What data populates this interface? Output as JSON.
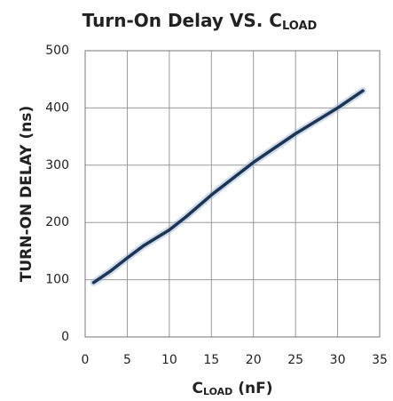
{
  "chart_data": {
    "type": "line",
    "title": "Turn-On Delay VS. C",
    "title_subscript": "LOAD",
    "xlabel": "C",
    "xlabel_subscript": "LOAD",
    "xlabel_unit": " (nF)",
    "ylabel": "TURN-ON DELAY (ns)",
    "x": [
      1,
      3,
      5,
      7,
      10,
      12,
      15,
      20,
      25,
      30,
      33
    ],
    "series": [
      {
        "name": "Turn-On Delay",
        "color": "#1c3553",
        "values": [
          95,
          115,
          138,
          160,
          187,
          210,
          248,
          305,
          355,
          400,
          430
        ]
      }
    ],
    "xlim": [
      0,
      35
    ],
    "xticks": [
      0,
      5,
      10,
      15,
      20,
      25,
      30,
      35
    ],
    "ylim": [
      0,
      500
    ],
    "yticks": [
      0,
      100,
      200,
      300,
      400,
      500
    ],
    "grid": true
  }
}
